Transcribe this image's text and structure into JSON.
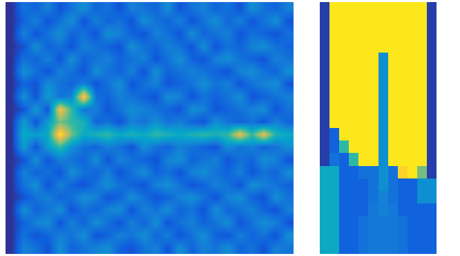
{
  "chart_data": [
    {
      "type": "heatmap",
      "tick_labels": false,
      "zlim": [
        0,
        1
      ],
      "cells": [
        [
          0.02,
          0.2,
          0.15,
          0.25,
          0.1,
          0.2,
          0.3,
          0.15,
          0.2,
          0.1,
          0.25,
          0.2,
          0.15,
          0.3,
          0.1,
          0.2,
          0.25,
          0.15,
          0.2,
          0.1,
          0.3,
          0.2,
          0.15,
          0.25
        ],
        [
          0.02,
          0.15,
          0.25,
          0.1,
          0.2,
          0.3,
          0.1,
          0.25,
          0.15,
          0.2,
          0.1,
          0.3,
          0.2,
          0.15,
          0.25,
          0.1,
          0.2,
          0.3,
          0.15,
          0.25,
          0.1,
          0.2,
          0.3,
          0.1
        ],
        [
          0.02,
          0.25,
          0.1,
          0.2,
          0.3,
          0.15,
          0.2,
          0.1,
          0.3,
          0.25,
          0.15,
          0.1,
          0.25,
          0.2,
          0.1,
          0.3,
          0.15,
          0.2,
          0.25,
          0.1,
          0.2,
          0.15,
          0.1,
          0.2
        ],
        [
          0.02,
          0.1,
          0.3,
          0.15,
          0.2,
          0.1,
          0.25,
          0.2,
          0.15,
          0.1,
          0.3,
          0.2,
          0.15,
          0.25,
          0.2,
          0.1,
          0.3,
          0.1,
          0.2,
          0.15,
          0.25,
          0.3,
          0.2,
          0.15
        ],
        [
          0.02,
          0.2,
          0.15,
          0.25,
          0.1,
          0.3,
          0.15,
          0.2,
          0.25,
          0.15,
          0.2,
          0.25,
          0.1,
          0.2,
          0.3,
          0.15,
          0.1,
          0.25,
          0.3,
          0.2,
          0.15,
          0.1,
          0.25,
          0.2
        ],
        [
          0.02,
          0.3,
          0.2,
          0.1,
          0.25,
          0.2,
          0.1,
          0.3,
          0.2,
          0.15,
          0.25,
          0.1,
          0.3,
          0.15,
          0.2,
          0.25,
          0.2,
          0.15,
          0.1,
          0.25,
          0.3,
          0.2,
          0.15,
          0.3
        ],
        [
          0.02,
          0.15,
          0.1,
          0.3,
          0.2,
          0.15,
          0.25,
          0.1,
          0.2,
          0.3,
          0.1,
          0.2,
          0.25,
          0.1,
          0.15,
          0.2,
          0.3,
          0.2,
          0.25,
          0.1,
          0.2,
          0.25,
          0.3,
          0.1
        ],
        [
          0.02,
          0.3,
          0.1,
          0.35,
          0.2,
          0.25,
          0.9,
          0.2,
          0.15,
          0.25,
          0.2,
          0.15,
          0.1,
          0.3,
          0.25,
          0.1,
          0.2,
          0.15,
          0.2,
          0.3,
          0.1,
          0.15,
          0.2,
          0.25
        ],
        [
          0.02,
          0.1,
          0.35,
          0.1,
          0.85,
          0.5,
          0.2,
          0.25,
          0.1,
          0.2,
          0.3,
          0.25,
          0.2,
          0.15,
          0.1,
          0.3,
          0.25,
          0.1,
          0.15,
          0.2,
          0.25,
          0.3,
          0.1,
          0.2
        ],
        [
          0.02,
          0.35,
          0.1,
          0.35,
          0.6,
          0.5,
          0.45,
          0.15,
          0.2,
          0.1,
          0.25,
          0.2,
          0.3,
          0.2,
          0.25,
          0.15,
          0.1,
          0.3,
          0.2,
          0.15,
          0.2,
          0.1,
          0.25,
          0.15
        ],
        [
          0.02,
          0.4,
          0.35,
          0.4,
          0.95,
          0.6,
          0.4,
          0.45,
          0.5,
          0.4,
          0.45,
          0.4,
          0.5,
          0.45,
          0.4,
          0.45,
          0.5,
          0.45,
          0.5,
          0.8,
          0.5,
          0.8,
          0.45,
          0.4
        ],
        [
          0.02,
          0.35,
          0.1,
          0.35,
          0.5,
          0.3,
          0.2,
          0.15,
          0.25,
          0.2,
          0.1,
          0.3,
          0.2,
          0.15,
          0.25,
          0.2,
          0.15,
          0.1,
          0.3,
          0.2,
          0.25,
          0.15,
          0.2,
          0.3
        ],
        [
          0.02,
          0.1,
          0.3,
          0.1,
          0.25,
          0.2,
          0.15,
          0.3,
          0.1,
          0.25,
          0.2,
          0.15,
          0.1,
          0.25,
          0.3,
          0.15,
          0.2,
          0.25,
          0.1,
          0.2,
          0.15,
          0.3,
          0.25,
          0.1
        ],
        [
          0.02,
          0.25,
          0.15,
          0.2,
          0.1,
          0.3,
          0.2,
          0.15,
          0.25,
          0.1,
          0.2,
          0.3,
          0.15,
          0.2,
          0.1,
          0.25,
          0.3,
          0.2,
          0.15,
          0.25,
          0.1,
          0.2,
          0.15,
          0.3
        ],
        [
          0.02,
          0.2,
          0.3,
          0.1,
          0.25,
          0.15,
          0.1,
          0.2,
          0.3,
          0.2,
          0.15,
          0.1,
          0.25,
          0.3,
          0.2,
          0.1,
          0.15,
          0.25,
          0.2,
          0.1,
          0.3,
          0.25,
          0.2,
          0.15
        ],
        [
          0.02,
          0.1,
          0.2,
          0.25,
          0.15,
          0.2,
          0.3,
          0.25,
          0.1,
          0.15,
          0.3,
          0.2,
          0.1,
          0.15,
          0.25,
          0.3,
          0.2,
          0.1,
          0.25,
          0.3,
          0.15,
          0.1,
          0.3,
          0.2
        ],
        [
          0.02,
          0.3,
          0.15,
          0.2,
          0.3,
          0.1,
          0.2,
          0.15,
          0.25,
          0.3,
          0.1,
          0.25,
          0.2,
          0.3,
          0.15,
          0.2,
          0.1,
          0.3,
          0.15,
          0.2,
          0.25,
          0.15,
          0.1,
          0.25
        ],
        [
          0.02,
          0.15,
          0.25,
          0.3,
          0.1,
          0.25,
          0.15,
          0.3,
          0.2,
          0.1,
          0.25,
          0.15,
          0.3,
          0.1,
          0.2,
          0.25,
          0.15,
          0.2,
          0.3,
          0.1,
          0.2,
          0.3,
          0.25,
          0.1
        ],
        [
          0.02,
          0.2,
          0.1,
          0.15,
          0.25,
          0.2,
          0.3,
          0.1,
          0.15,
          0.25,
          0.2,
          0.3,
          0.15,
          0.25,
          0.1,
          0.2,
          0.3,
          0.15,
          0.1,
          0.25,
          0.15,
          0.2,
          0.1,
          0.3
        ],
        [
          0.02,
          0.25,
          0.2,
          0.1,
          0.3,
          0.15,
          0.2,
          0.25,
          0.3,
          0.15,
          0.1,
          0.2,
          0.25,
          0.1,
          0.3,
          0.15,
          0.25,
          0.2,
          0.3,
          0.15,
          0.2,
          0.1,
          0.25,
          0.2
        ]
      ]
    },
    {
      "type": "heatmap",
      "tick_labels": false,
      "zlim": [
        0,
        1
      ],
      "cells": [
        [
          0.05,
          0.95,
          0.95,
          0.95,
          0.95,
          0.95,
          0.95,
          0.95,
          0.95,
          0.95,
          0.95,
          0.05
        ],
        [
          0.05,
          0.95,
          0.95,
          0.95,
          0.95,
          0.95,
          0.95,
          0.95,
          0.95,
          0.95,
          0.95,
          0.05
        ],
        [
          0.05,
          0.95,
          0.95,
          0.95,
          0.95,
          0.95,
          0.95,
          0.95,
          0.95,
          0.95,
          0.95,
          0.05
        ],
        [
          0.05,
          0.95,
          0.95,
          0.95,
          0.95,
          0.95,
          0.95,
          0.95,
          0.95,
          0.95,
          0.95,
          0.05
        ],
        [
          0.05,
          0.95,
          0.95,
          0.95,
          0.95,
          0.95,
          0.3,
          0.95,
          0.95,
          0.95,
          0.95,
          0.05
        ],
        [
          0.05,
          0.95,
          0.95,
          0.95,
          0.95,
          0.95,
          0.3,
          0.95,
          0.95,
          0.95,
          0.95,
          0.05
        ],
        [
          0.05,
          0.95,
          0.95,
          0.95,
          0.95,
          0.95,
          0.3,
          0.95,
          0.95,
          0.95,
          0.95,
          0.05
        ],
        [
          0.05,
          0.95,
          0.95,
          0.95,
          0.95,
          0.95,
          0.3,
          0.95,
          0.95,
          0.95,
          0.95,
          0.05
        ],
        [
          0.05,
          0.95,
          0.95,
          0.95,
          0.95,
          0.95,
          0.3,
          0.95,
          0.95,
          0.95,
          0.95,
          0.05
        ],
        [
          0.05,
          0.95,
          0.95,
          0.95,
          0.95,
          0.95,
          0.3,
          0.95,
          0.95,
          0.95,
          0.95,
          0.05
        ],
        [
          0.05,
          0.15,
          0.95,
          0.95,
          0.95,
          0.95,
          0.3,
          0.95,
          0.95,
          0.95,
          0.95,
          0.05
        ],
        [
          0.05,
          0.15,
          0.5,
          0.95,
          0.95,
          0.95,
          0.3,
          0.95,
          0.95,
          0.95,
          0.95,
          0.05
        ],
        [
          0.05,
          0.2,
          0.15,
          0.5,
          0.95,
          0.95,
          0.3,
          0.95,
          0.95,
          0.95,
          0.95,
          0.05
        ],
        [
          0.4,
          0.4,
          0.15,
          0.15,
          0.2,
          0.2,
          0.3,
          0.2,
          0.9,
          0.95,
          0.6,
          0.05
        ],
        [
          0.4,
          0.4,
          0.15,
          0.15,
          0.15,
          0.2,
          0.3,
          0.2,
          0.15,
          0.15,
          0.3,
          0.3
        ],
        [
          0.4,
          0.4,
          0.15,
          0.15,
          0.15,
          0.2,
          0.25,
          0.2,
          0.15,
          0.15,
          0.3,
          0.3
        ],
        [
          0.4,
          0.4,
          0.15,
          0.15,
          0.15,
          0.22,
          0.25,
          0.22,
          0.15,
          0.15,
          0.15,
          0.15
        ],
        [
          0.4,
          0.4,
          0.15,
          0.15,
          0.2,
          0.22,
          0.22,
          0.22,
          0.2,
          0.15,
          0.15,
          0.15
        ],
        [
          0.4,
          0.4,
          0.15,
          0.15,
          0.2,
          0.22,
          0.22,
          0.22,
          0.2,
          0.15,
          0.15,
          0.15
        ],
        [
          0.4,
          0.4,
          0.15,
          0.15,
          0.2,
          0.22,
          0.22,
          0.22,
          0.2,
          0.15,
          0.15,
          0.15
        ]
      ]
    }
  ]
}
